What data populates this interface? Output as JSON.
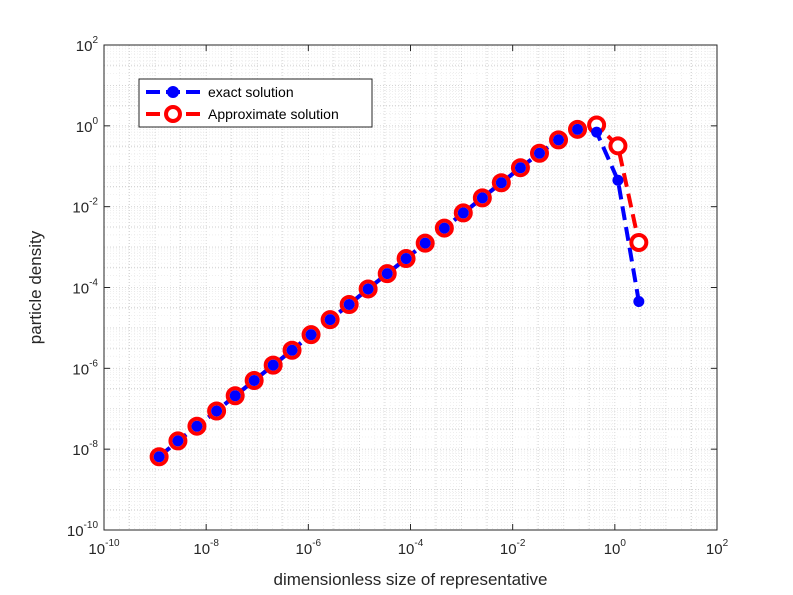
{
  "chart_data": {
    "type": "line",
    "scale": "log-log",
    "title": "",
    "xlabel": "dimensionless size of representative",
    "ylabel": "particle density",
    "xlim_exponents": [
      -10,
      2
    ],
    "ylim_exponents": [
      -10,
      2
    ],
    "x_tick_exponents": [
      -10,
      -8,
      -6,
      -4,
      -2,
      0,
      2
    ],
    "y_tick_exponents": [
      -10,
      -8,
      -6,
      -4,
      -2,
      0,
      2
    ],
    "tick_base": "10",
    "grid": true,
    "minor_grid": true,
    "legend_position": "top-left",
    "series": [
      {
        "name": "exact solution",
        "color": "#0000ff",
        "line_style": "dashed",
        "marker": "filled-circle",
        "x": [
          1.2e-09,
          2.8e-09,
          6.6e-09,
          1.6e-08,
          3.7e-08,
          8.7e-08,
          2.05e-07,
          4.8e-07,
          1.13e-06,
          2.67e-06,
          6.3e-06,
          1.48e-05,
          3.5e-05,
          8.2e-05,
          0.000194,
          0.00046,
          0.00108,
          0.00255,
          0.006,
          0.0142,
          0.0335,
          0.079,
          0.186,
          0.44,
          1.15,
          2.95
        ],
        "y": [
          6.5e-09,
          1.6e-08,
          3.7e-08,
          8.8e-08,
          2.1e-07,
          5e-07,
          1.2e-06,
          2.8e-06,
          6.8e-06,
          1.6e-05,
          3.8e-05,
          9.2e-05,
          0.00022,
          0.00052,
          0.00125,
          0.00295,
          0.007,
          0.0165,
          0.039,
          0.092,
          0.21,
          0.45,
          0.82,
          0.7,
          0.045,
          4.5e-05
        ]
      },
      {
        "name": "Approximate solution",
        "color": "#ff0000",
        "line_style": "dashed",
        "marker": "open-circle",
        "x": [
          1.2e-09,
          2.8e-09,
          6.6e-09,
          1.6e-08,
          3.7e-08,
          8.7e-08,
          2.05e-07,
          4.8e-07,
          1.13e-06,
          2.67e-06,
          6.3e-06,
          1.48e-05,
          3.5e-05,
          8.2e-05,
          0.000194,
          0.00046,
          0.00108,
          0.00255,
          0.006,
          0.0142,
          0.0335,
          0.079,
          0.186,
          0.44,
          1.15,
          2.95
        ],
        "y": [
          6.5e-09,
          1.6e-08,
          3.7e-08,
          8.8e-08,
          2.1e-07,
          5e-07,
          1.2e-06,
          2.8e-06,
          6.8e-06,
          1.6e-05,
          3.8e-05,
          9.2e-05,
          0.00022,
          0.00052,
          0.00125,
          0.00295,
          0.007,
          0.0165,
          0.039,
          0.092,
          0.21,
          0.45,
          0.82,
          1.05,
          0.32,
          0.0013
        ]
      }
    ]
  }
}
